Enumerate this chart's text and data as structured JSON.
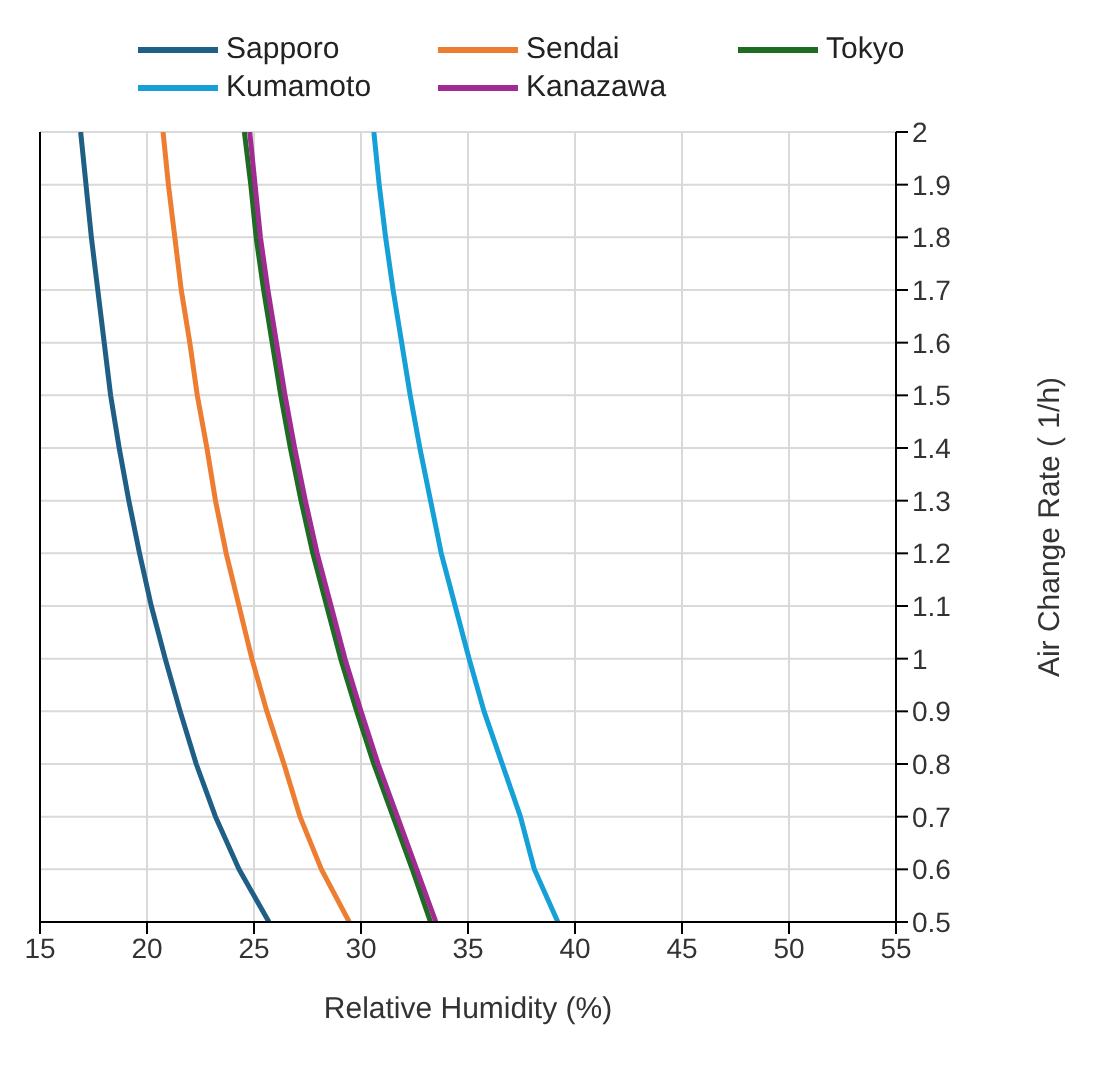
{
  "chart_data": {
    "type": "line",
    "xlabel": "Relative Humidity (%)",
    "ylabel": "Air Change Rate ( 1/h)",
    "xlim": [
      15,
      55
    ],
    "xticks": [
      15,
      20,
      25,
      30,
      35,
      40,
      45,
      50,
      55
    ],
    "ylim": [
      0.5,
      2
    ],
    "yticks": [
      0.5,
      0.6,
      0.7,
      0.8,
      0.9,
      1,
      1.1,
      1.2,
      1.3,
      1.4,
      1.5,
      1.6,
      1.7,
      1.8,
      1.9,
      2
    ],
    "grid": true,
    "legend": "top",
    "marker": "none",
    "line_style": "solid",
    "series": [
      {
        "name": "Sapporo",
        "color": "#1f5f86",
        "x": [
          16.9,
          17.15,
          17.4,
          17.7,
          18.0,
          18.3,
          18.7,
          19.15,
          19.65,
          20.2,
          20.85,
          21.55,
          22.3,
          23.2,
          24.3,
          25.7
        ],
        "values": [
          2,
          1.9,
          1.8,
          1.7,
          1.6,
          1.5,
          1.4,
          1.3,
          1.2,
          1.1,
          1,
          0.9,
          0.8,
          0.7,
          0.6,
          0.5
        ]
      },
      {
        "name": "Sendai",
        "color": "#ed7d31",
        "x": [
          20.75,
          21.0,
          21.3,
          21.6,
          22.0,
          22.35,
          22.8,
          23.2,
          23.7,
          24.3,
          24.9,
          25.6,
          26.4,
          27.15,
          28.15,
          29.45
        ],
        "values": [
          2,
          1.9,
          1.8,
          1.7,
          1.6,
          1.5,
          1.4,
          1.3,
          1.2,
          1.1,
          1,
          0.9,
          0.8,
          0.7,
          0.6,
          0.5
        ]
      },
      {
        "name": "Tokyo",
        "color": "#1e6b24",
        "x": [
          24.55,
          24.85,
          25.1,
          25.45,
          25.85,
          26.25,
          26.7,
          27.2,
          27.75,
          28.4,
          29.05,
          29.8,
          30.6,
          31.5,
          32.4,
          33.25
        ],
        "values": [
          2,
          1.9,
          1.8,
          1.7,
          1.6,
          1.5,
          1.4,
          1.3,
          1.2,
          1.1,
          1,
          0.9,
          0.8,
          0.7,
          0.6,
          0.5
        ]
      },
      {
        "name": "Kumamoto",
        "color": "#16a0d8",
        "x": [
          30.6,
          30.85,
          31.15,
          31.5,
          31.9,
          32.3,
          32.75,
          33.25,
          33.75,
          34.4,
          35.05,
          35.75,
          36.6,
          37.45,
          38.1,
          39.2
        ],
        "values": [
          2,
          1.9,
          1.8,
          1.7,
          1.6,
          1.5,
          1.4,
          1.3,
          1.2,
          1.1,
          1,
          0.9,
          0.8,
          0.7,
          0.6,
          0.5
        ]
      },
      {
        "name": "Kanazawa",
        "color": "#a02b93",
        "x": [
          24.8,
          25.05,
          25.3,
          25.65,
          26.05,
          26.45,
          26.9,
          27.4,
          27.95,
          28.6,
          29.25,
          30.0,
          30.8,
          31.7,
          32.6,
          33.5
        ],
        "values": [
          2,
          1.9,
          1.8,
          1.7,
          1.6,
          1.5,
          1.4,
          1.3,
          1.2,
          1.1,
          1,
          0.9,
          0.8,
          0.7,
          0.6,
          0.5
        ]
      }
    ]
  }
}
